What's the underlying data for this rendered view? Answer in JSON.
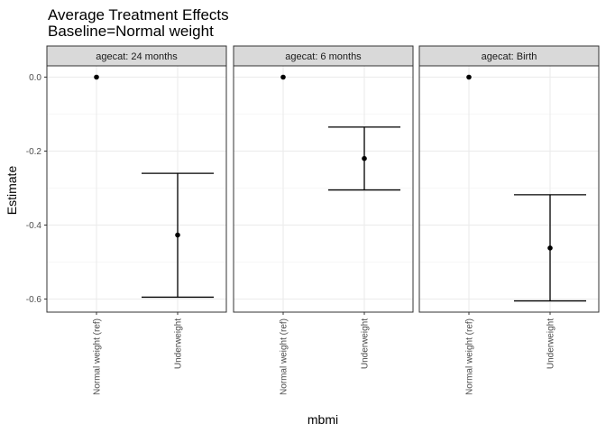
{
  "chart_data": {
    "type": "scatter",
    "title": "Average Treatment Effects",
    "subtitle": "Baseline=Normal weight",
    "xlabel": "mbmi",
    "ylabel": "Estimate",
    "categories": [
      "Normal weight (ref)",
      "Underweight"
    ],
    "y_ticks": [
      0.0,
      -0.2,
      -0.4,
      -0.6
    ],
    "y_tick_labels": [
      "0.0",
      "-0.2",
      "-0.4",
      "-0.6"
    ],
    "ylim": [
      -0.635,
      0.03
    ],
    "grid": true,
    "facet_variable": "agecat",
    "panels": [
      {
        "label": "agecat: 24 months",
        "points": [
          {
            "category": "Normal weight (ref)",
            "estimate": 0.0
          },
          {
            "category": "Underweight",
            "estimate": -0.427,
            "ci_lower": -0.595,
            "ci_upper": -0.26
          }
        ]
      },
      {
        "label": "agecat: 6 months",
        "points": [
          {
            "category": "Normal weight (ref)",
            "estimate": 0.0
          },
          {
            "category": "Underweight",
            "estimate": -0.22,
            "ci_lower": -0.305,
            "ci_upper": -0.135
          }
        ]
      },
      {
        "label": "agecat: Birth",
        "points": [
          {
            "category": "Normal weight (ref)",
            "estimate": 0.0
          },
          {
            "category": "Underweight",
            "estimate": -0.462,
            "ci_lower": -0.605,
            "ci_upper": -0.318
          }
        ]
      }
    ],
    "colors": {
      "point": "#000000",
      "errorbar": "#000000",
      "panel_border": "#333333",
      "strip_fill": "#d9d9d9",
      "grid_major": "#ebebeb",
      "grid_minor": "#f5f5f5",
      "background": "#ffffff"
    }
  }
}
